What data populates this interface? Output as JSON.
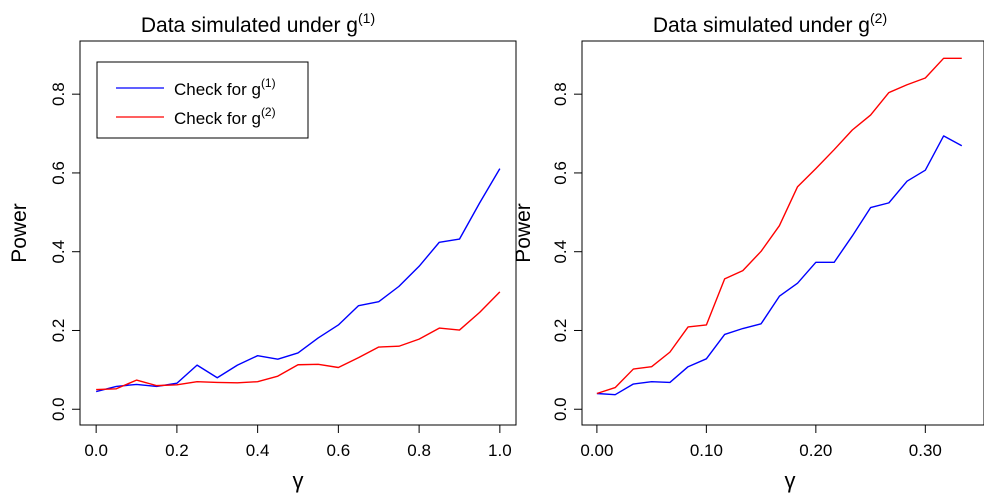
{
  "chart_data": [
    {
      "type": "line",
      "title": "Data simulated under g",
      "title_superscript": "(1)",
      "xlabel": "γ",
      "ylabel": "Power",
      "xlim": [
        -0.04,
        1.04
      ],
      "ylim": [
        -0.04,
        0.935
      ],
      "x_ticks": [
        0.0,
        0.2,
        0.4,
        0.6,
        0.8,
        1.0
      ],
      "x_tick_labels": [
        "0.0",
        "0.2",
        "0.4",
        "0.6",
        "0.8",
        "1.0"
      ],
      "y_ticks": [
        0.0,
        0.2,
        0.4,
        0.6,
        0.8
      ],
      "y_tick_labels": [
        "0.0",
        "0.2",
        "0.4",
        "0.6",
        "0.8"
      ],
      "grid": false,
      "legend": {
        "placement": "top-left",
        "entries": [
          {
            "label": "Check for g",
            "superscript": "(1)",
            "color": "#0000ff"
          },
          {
            "label": "Check for g",
            "superscript": "(2)",
            "color": "#ff0000"
          }
        ]
      },
      "x": [
        0.0,
        0.05,
        0.1,
        0.15,
        0.2,
        0.25,
        0.3,
        0.35,
        0.4,
        0.45,
        0.5,
        0.55,
        0.6,
        0.65,
        0.7,
        0.75,
        0.8,
        0.85,
        0.9,
        0.95,
        1.0
      ],
      "series": [
        {
          "color": "#0000ff",
          "values": [
            0.045,
            0.058,
            0.063,
            0.058,
            0.066,
            0.112,
            0.08,
            0.112,
            0.136,
            0.127,
            0.143,
            0.181,
            0.214,
            0.263,
            0.273,
            0.312,
            0.363,
            0.424,
            0.432,
            0.524,
            0.611
          ]
        },
        {
          "color": "#ff0000",
          "values": [
            0.05,
            0.052,
            0.074,
            0.06,
            0.062,
            0.07,
            0.068,
            0.067,
            0.07,
            0.084,
            0.113,
            0.114,
            0.106,
            0.131,
            0.158,
            0.16,
            0.178,
            0.206,
            0.201,
            0.246,
            0.298
          ]
        }
      ]
    },
    {
      "type": "line",
      "title": "Data simulated under g",
      "title_superscript": "(2)",
      "xlabel": "γ",
      "ylabel": "Power",
      "xlim": [
        -0.0136,
        0.3536
      ],
      "ylim": [
        -0.04,
        0.935
      ],
      "x_ticks": [
        0.0,
        0.1,
        0.2,
        0.3
      ],
      "x_tick_labels": [
        "0.00",
        "0.10",
        "0.20",
        "0.30"
      ],
      "y_ticks": [
        0.0,
        0.2,
        0.4,
        0.6,
        0.8
      ],
      "y_tick_labels": [
        "0.0",
        "0.2",
        "0.4",
        "0.6",
        "0.8"
      ],
      "grid": false,
      "x": [
        0.0,
        0.0167,
        0.0333,
        0.05,
        0.0667,
        0.0833,
        0.1,
        0.1167,
        0.1333,
        0.15,
        0.1667,
        0.1833,
        0.2,
        0.2167,
        0.2333,
        0.25,
        0.2667,
        0.2833,
        0.3,
        0.3167,
        0.3333
      ],
      "series": [
        {
          "color": "#0000ff",
          "values": [
            0.04,
            0.037,
            0.064,
            0.07,
            0.068,
            0.108,
            0.128,
            0.19,
            0.205,
            0.217,
            0.287,
            0.32,
            0.373,
            0.373,
            0.44,
            0.512,
            0.524,
            0.579,
            0.607,
            0.694,
            0.669
          ]
        },
        {
          "color": "#ff0000",
          "values": [
            0.04,
            0.055,
            0.102,
            0.108,
            0.145,
            0.209,
            0.214,
            0.331,
            0.352,
            0.401,
            0.466,
            0.565,
            0.611,
            0.659,
            0.709,
            0.747,
            0.804,
            0.824,
            0.841,
            0.891,
            0.891
          ]
        }
      ]
    }
  ]
}
